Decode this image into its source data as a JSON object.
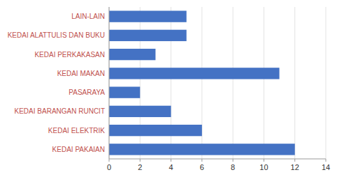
{
  "chart_data": {
    "type": "bar",
    "orientation": "horizontal",
    "categories": [
      "KEDAI PAKAIAN",
      "KEDAI ELEKTRIK",
      "KEDAI BARANGAN RUNCIT",
      "PASARAYA",
      "KEDAI MAKAN",
      "KEDAI PERKAKASAN",
      "KEDAI ALATTULIS DAN BUKU",
      "LAIN-LAIN"
    ],
    "values": [
      12,
      6,
      4,
      2,
      11,
      3,
      5,
      5
    ],
    "color": "#4472c4",
    "xlim": [
      0,
      14
    ],
    "xticks": [
      0,
      2,
      4,
      6,
      8,
      10,
      12,
      14
    ],
    "grid": true
  }
}
